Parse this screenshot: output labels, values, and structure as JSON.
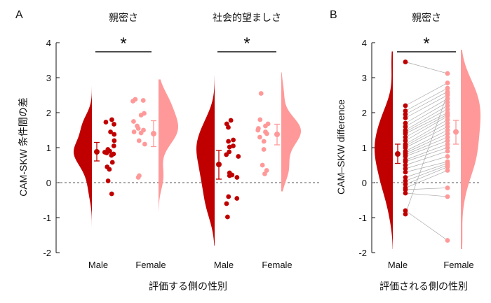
{
  "colors": {
    "male": "#c00000",
    "female": "#ff9999",
    "male_dot": "#c00000",
    "female_dot": "#ff9999",
    "line": "#aaaaaa",
    "zero": "#555555"
  },
  "panel_a": {
    "letter": "A",
    "ylabel": "CAM-SKW 条件間の差",
    "xlabel": "評価する側の性別",
    "categories": [
      "Male",
      "Female"
    ],
    "ytick_labels": [
      "4",
      "3",
      "2",
      "1",
      "0",
      "-1",
      "-2"
    ]
  },
  "panel_b": {
    "letter": "B",
    "ylabel": "CAM–SKW difference",
    "xlabel": "評価される側の性別",
    "categories": [
      "Male",
      "Female"
    ],
    "ytick_labels": [
      "4",
      "3",
      "2",
      "1",
      "0",
      "-1",
      "-2"
    ]
  },
  "chart_data": [
    {
      "type": "scatter",
      "panel": "A",
      "title": "親密さ",
      "significance": "*",
      "ylim": [
        -2,
        4
      ],
      "yticks": [
        4,
        3,
        2,
        1,
        0,
        -1,
        -2
      ],
      "categories": [
        "Male",
        "Female"
      ],
      "series": [
        {
          "name": "Male",
          "mean": 0.88,
          "ci": [
            0.62,
            1.15
          ],
          "range": [
            -1.25,
            2.75
          ],
          "values": [
            1.8,
            1.73,
            1.67,
            1.45,
            1.38,
            1.2,
            1.05,
            0.95,
            0.9,
            0.87,
            0.85,
            0.82,
            0.78,
            0.58,
            0.45,
            0.38,
            0.05,
            -0.32
          ]
        },
        {
          "name": "Female",
          "mean": 1.4,
          "ci": [
            1.03,
            1.77
          ],
          "range": [
            -0.8,
            2.95
          ],
          "values": [
            2.38,
            2.33,
            2.35,
            1.98,
            1.93,
            1.75,
            1.62,
            1.55,
            1.5,
            1.45,
            1.42,
            1.2,
            1.1,
            0.2,
            0.15
          ]
        }
      ]
    },
    {
      "type": "scatter",
      "panel": "A",
      "title": "社会的望ましさ",
      "significance": "*",
      "ylim": [
        -2,
        4
      ],
      "yticks": [
        4,
        3,
        2,
        1,
        0,
        -1,
        -2
      ],
      "categories": [
        "Male",
        "Female"
      ],
      "series": [
        {
          "name": "Male",
          "mean": 0.52,
          "ci": [
            0.1,
            0.92
          ],
          "range": [
            -1.8,
            3.05
          ],
          "values": [
            1.78,
            1.68,
            1.58,
            1.22,
            1.18,
            1.05,
            1.02,
            0.88,
            0.8,
            0.75,
            0.28,
            0.22,
            0.2,
            0.15,
            -0.4,
            -0.45,
            -0.6,
            -0.98
          ]
        },
        {
          "name": "Female",
          "mean": 1.38,
          "ci": [
            1.08,
            1.67
          ],
          "range": [
            -0.25,
            3.15
          ],
          "values": [
            2.55,
            1.8,
            1.68,
            1.62,
            1.55,
            1.5,
            1.45,
            1.4,
            1.3,
            1.18,
            0.95,
            0.5,
            0.35,
            0.25
          ]
        }
      ]
    },
    {
      "type": "scatter",
      "panel": "B",
      "title": "親密さ",
      "significance": "*",
      "ylim": [
        -2,
        4
      ],
      "yticks": [
        4,
        3,
        2,
        1,
        0,
        -1,
        -2
      ],
      "categories": [
        "Male",
        "Female"
      ],
      "paired": true,
      "series": [
        {
          "name": "Male",
          "mean": 0.82,
          "ci": [
            0.55,
            1.1
          ],
          "range": [
            -1.9,
            3.75
          ],
          "values": [
            3.45,
            2.2,
            2.05,
            1.95,
            1.85,
            1.7,
            1.6,
            1.5,
            1.45,
            1.4,
            1.3,
            1.2,
            1.1,
            1.05,
            1.0,
            0.9,
            0.85,
            0.8,
            0.75,
            0.65,
            0.6,
            0.5,
            0.4,
            0.3,
            0.15,
            0.05,
            -0.05,
            -0.15,
            -0.2,
            -0.3,
            -0.8,
            -0.9
          ]
        },
        {
          "name": "Female",
          "mean": 1.45,
          "ci": [
            1.1,
            1.78
          ],
          "range": [
            -1.9,
            3.8
          ],
          "values": [
            3.12,
            2.85,
            2.7,
            2.6,
            2.5,
            2.4,
            2.3,
            2.2,
            2.1,
            2.0,
            1.95,
            1.9,
            1.8,
            1.7,
            1.6,
            1.5,
            1.4,
            1.3,
            1.2,
            1.1,
            1.0,
            0.9,
            0.75,
            0.6,
            0.55,
            0.5,
            0.45,
            0.35,
            -0.15,
            -0.4,
            -1.65,
            2.55
          ]
        }
      ]
    }
  ]
}
